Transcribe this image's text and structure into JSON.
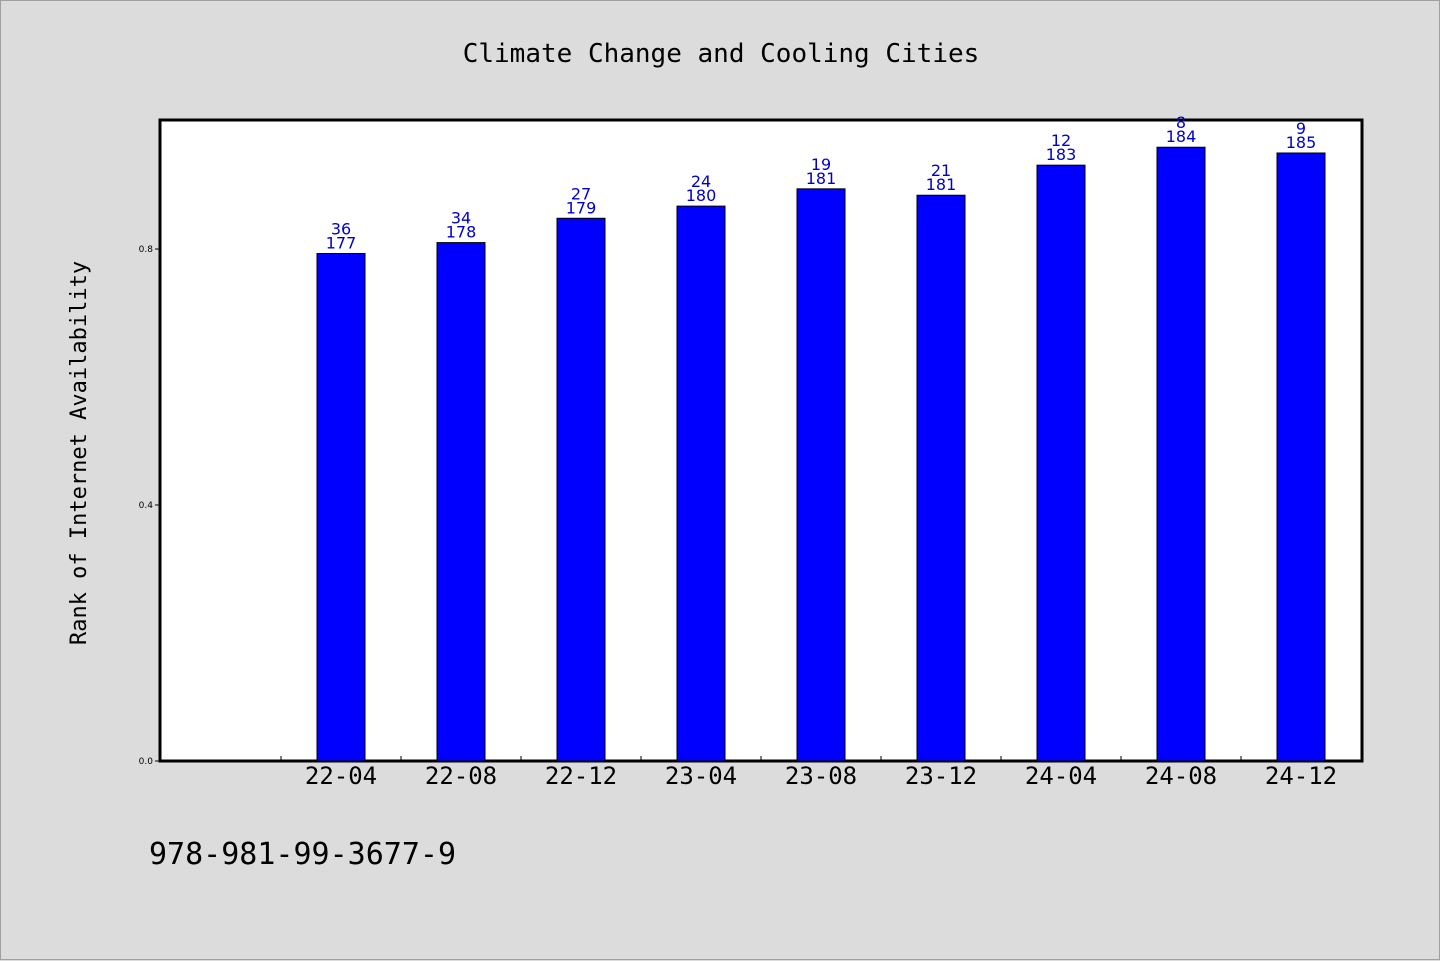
{
  "chart_data": {
    "type": "bar",
    "title": "Climate Change and Cooling Cities",
    "ylabel": "Rank of Internet Availability",
    "xlabel": "",
    "categories": [
      "22-04",
      "22-08",
      "22-12",
      "23-04",
      "23-08",
      "23-12",
      "24-04",
      "24-08",
      "24-12"
    ],
    "values": [
      0.793,
      0.81,
      0.848,
      0.867,
      0.894,
      0.884,
      0.931,
      0.959,
      0.95
    ],
    "label_top": [
      "36",
      "34",
      "27",
      "24",
      "19",
      "21",
      "12",
      "8",
      "9"
    ],
    "label_bottom": [
      "177",
      "178",
      "179",
      "180",
      "181",
      "181",
      "183",
      "184",
      "185"
    ],
    "ylim": [
      0,
      1.0
    ],
    "y_ticks": [
      "0.0",
      "0.4",
      "0.8"
    ],
    "y_tick_values": [
      0.0,
      0.4,
      0.8
    ],
    "grid": false,
    "legend": "none",
    "bar_color": "#0000ff",
    "label_color": "#0000cc"
  },
  "footer": {
    "isbn": "978-981-99-3677-9"
  }
}
